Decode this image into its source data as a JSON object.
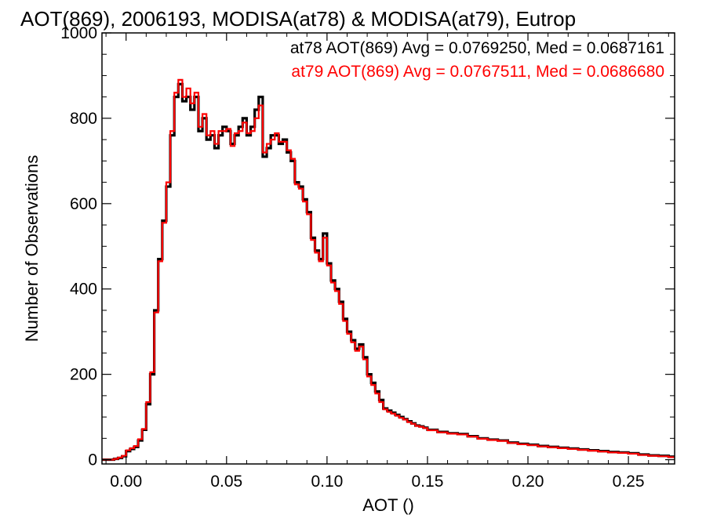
{
  "chart_data": {
    "type": "histogram",
    "title": "AOT(869), 2006193, MODISA(at78) & MODISA(at79), Eutrop",
    "xlabel": "AOT ()",
    "ylabel": "Number of Observations",
    "xlim": [
      -0.012,
      0.273
    ],
    "ylim": [
      -10,
      1000
    ],
    "xticks": [
      0.0,
      0.05,
      0.1,
      0.15,
      0.2,
      0.25
    ],
    "xtick_labels": [
      "0.00",
      "0.05",
      "0.10",
      "0.15",
      "0.20",
      "0.25"
    ],
    "yticks": [
      0,
      200,
      400,
      600,
      800,
      1000
    ],
    "ytick_labels": [
      "0",
      "200",
      "400",
      "600",
      "800",
      "1000"
    ],
    "annotations": [
      {
        "text": "at78 AOT(869) Avg = 0.0769250, Med = 0.0687161",
        "color": "#000000"
      },
      {
        "text": "at79 AOT(869) Avg = 0.0767511, Med = 0.0686680",
        "color": "#ff0000"
      }
    ],
    "series": [
      {
        "name": "at78",
        "color": "#000000",
        "x": [
          -0.012,
          -0.01,
          -0.008,
          -0.006,
          -0.004,
          -0.002,
          0.0,
          0.002,
          0.004,
          0.006,
          0.008,
          0.01,
          0.012,
          0.014,
          0.016,
          0.018,
          0.02,
          0.022,
          0.024,
          0.026,
          0.028,
          0.03,
          0.032,
          0.034,
          0.036,
          0.038,
          0.04,
          0.042,
          0.044,
          0.046,
          0.048,
          0.05,
          0.052,
          0.054,
          0.056,
          0.058,
          0.06,
          0.062,
          0.064,
          0.066,
          0.068,
          0.07,
          0.072,
          0.074,
          0.076,
          0.078,
          0.08,
          0.082,
          0.084,
          0.086,
          0.088,
          0.09,
          0.092,
          0.094,
          0.096,
          0.098,
          0.1,
          0.102,
          0.104,
          0.106,
          0.108,
          0.11,
          0.112,
          0.114,
          0.116,
          0.118,
          0.12,
          0.122,
          0.124,
          0.126,
          0.128,
          0.13,
          0.132,
          0.134,
          0.136,
          0.138,
          0.14,
          0.142,
          0.144,
          0.146,
          0.148,
          0.15,
          0.155,
          0.16,
          0.165,
          0.17,
          0.175,
          0.18,
          0.185,
          0.19,
          0.195,
          0.2,
          0.205,
          0.21,
          0.215,
          0.22,
          0.225,
          0.23,
          0.235,
          0.24,
          0.245,
          0.25,
          0.255,
          0.26,
          0.265,
          0.27
        ],
        "y": [
          0,
          0,
          0,
          2,
          4,
          8,
          20,
          25,
          30,
          45,
          70,
          130,
          200,
          350,
          470,
          560,
          640,
          760,
          850,
          880,
          840,
          850,
          820,
          850,
          770,
          800,
          750,
          760,
          730,
          760,
          780,
          770,
          740,
          760,
          780,
          800,
          760,
          780,
          820,
          850,
          710,
          730,
          760,
          760,
          740,
          750,
          720,
          700,
          650,
          640,
          610,
          580,
          520,
          490,
          470,
          530,
          460,
          420,
          400,
          370,
          330,
          300,
          280,
          260,
          270,
          240,
          200,
          180,
          160,
          140,
          120,
          115,
          110,
          105,
          100,
          95,
          90,
          85,
          80,
          78,
          75,
          70,
          65,
          62,
          60,
          55,
          50,
          47,
          45,
          40,
          37,
          35,
          32,
          30,
          28,
          26,
          24,
          22,
          20,
          18,
          17,
          15,
          12,
          10,
          9,
          7
        ]
      },
      {
        "name": "at79",
        "color": "#ff0000",
        "x": [
          -0.012,
          -0.01,
          -0.008,
          -0.006,
          -0.004,
          -0.002,
          0.0,
          0.002,
          0.004,
          0.006,
          0.008,
          0.01,
          0.012,
          0.014,
          0.016,
          0.018,
          0.02,
          0.022,
          0.024,
          0.026,
          0.028,
          0.03,
          0.032,
          0.034,
          0.036,
          0.038,
          0.04,
          0.042,
          0.044,
          0.046,
          0.048,
          0.05,
          0.052,
          0.054,
          0.056,
          0.058,
          0.06,
          0.062,
          0.064,
          0.066,
          0.068,
          0.07,
          0.072,
          0.074,
          0.076,
          0.078,
          0.08,
          0.082,
          0.084,
          0.086,
          0.088,
          0.09,
          0.092,
          0.094,
          0.096,
          0.098,
          0.1,
          0.102,
          0.104,
          0.106,
          0.108,
          0.11,
          0.112,
          0.114,
          0.116,
          0.118,
          0.12,
          0.122,
          0.124,
          0.126,
          0.128,
          0.13,
          0.132,
          0.134,
          0.136,
          0.138,
          0.14,
          0.142,
          0.144,
          0.146,
          0.148,
          0.15,
          0.155,
          0.16,
          0.165,
          0.17,
          0.175,
          0.18,
          0.185,
          0.19,
          0.195,
          0.2,
          0.205,
          0.21,
          0.215,
          0.22,
          0.225,
          0.23,
          0.235,
          0.24,
          0.245,
          0.25,
          0.255,
          0.26,
          0.265,
          0.27
        ],
        "y": [
          0,
          0,
          0,
          2,
          5,
          9,
          22,
          27,
          32,
          48,
          72,
          135,
          205,
          345,
          465,
          555,
          650,
          770,
          860,
          890,
          850,
          870,
          835,
          860,
          780,
          810,
          760,
          770,
          740,
          770,
          770,
          775,
          735,
          765,
          770,
          790,
          765,
          770,
          800,
          830,
          720,
          740,
          750,
          765,
          745,
          745,
          725,
          705,
          645,
          635,
          605,
          575,
          515,
          485,
          465,
          520,
          455,
          415,
          395,
          365,
          325,
          295,
          275,
          255,
          265,
          235,
          195,
          175,
          155,
          135,
          118,
          112,
          108,
          103,
          98,
          94,
          88,
          84,
          79,
          77,
          74,
          69,
          64,
          61,
          59,
          54,
          49,
          46,
          44,
          39,
          36,
          34,
          31,
          29,
          27,
          25,
          23,
          21,
          19,
          17,
          16,
          14,
          11,
          9,
          8,
          6
        ]
      }
    ]
  }
}
